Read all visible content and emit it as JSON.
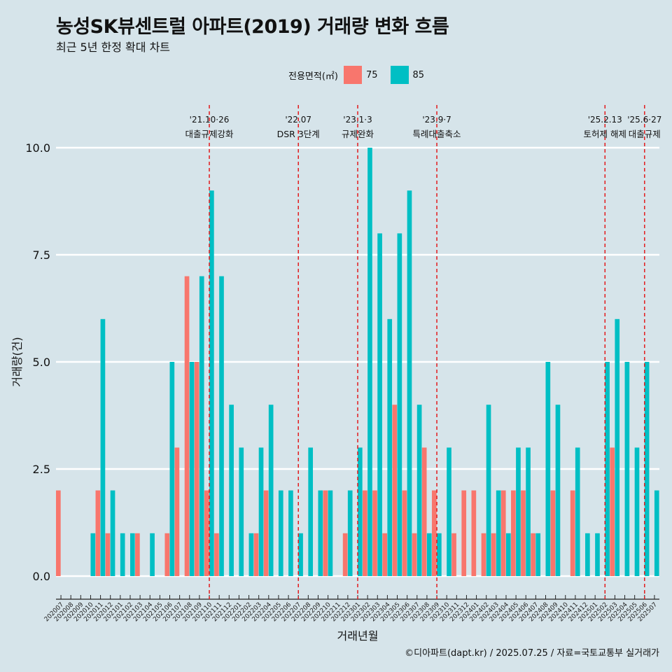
{
  "chart_data": {
    "type": "bar",
    "title": "농성SK뷰센트럴 아파트(2019) 거래량 변화 흐름",
    "subtitle": "최근 5년 한정 확대 차트",
    "xlabel": "거래년월",
    "ylabel": "거래량(건)",
    "ylim": [
      0,
      10
    ],
    "y_ticks": [
      "0.0",
      "2.5",
      "5.0",
      "7.5",
      "10.0"
    ],
    "legend": {
      "title": "전용면적(㎡)",
      "placement": "top-center",
      "entries": [
        {
          "label": "75",
          "color": "#f8766d"
        },
        {
          "label": "85",
          "color": "#00bfc4"
        }
      ]
    },
    "categories": [
      "202007",
      "202008",
      "202009",
      "202010",
      "202011",
      "202012",
      "202101",
      "202102",
      "202103",
      "202104",
      "202105",
      "202106",
      "202107",
      "202108",
      "202109",
      "202110",
      "202111",
      "202112",
      "202201",
      "202202",
      "202203",
      "202204",
      "202205",
      "202206",
      "202207",
      "202208",
      "202209",
      "202210",
      "202211",
      "202212",
      "202301",
      "202302",
      "202303",
      "202304",
      "202305",
      "202306",
      "202307",
      "202308",
      "202309",
      "202310",
      "202311",
      "202312",
      "202401",
      "202402",
      "202403",
      "202404",
      "202405",
      "202406",
      "202407",
      "202408",
      "202409",
      "202410",
      "202411",
      "202412",
      "202501",
      "202502",
      "202503",
      "202504",
      "202505",
      "202506",
      "202507"
    ],
    "series": [
      {
        "name": "75",
        "color": "#f8766d",
        "values": [
          2,
          0,
          0,
          0,
          2,
          1,
          0,
          0,
          1,
          0,
          0,
          1,
          3,
          7,
          5,
          2,
          1,
          0,
          0,
          0,
          1,
          2,
          0,
          0,
          0,
          0,
          0,
          2,
          0,
          1,
          0,
          2,
          2,
          1,
          4,
          2,
          1,
          3,
          2,
          0,
          1,
          2,
          2,
          1,
          1,
          2,
          2,
          2,
          1,
          0,
          2,
          0,
          2,
          0,
          0,
          0,
          3,
          0,
          0,
          0,
          0
        ]
      },
      {
        "name": "85",
        "color": "#00bfc4",
        "values": [
          0,
          0,
          0,
          1,
          6,
          2,
          1,
          1,
          0,
          1,
          0,
          5,
          0,
          5,
          7,
          9,
          7,
          4,
          3,
          1,
          3,
          4,
          2,
          2,
          1,
          3,
          2,
          2,
          0,
          2,
          3,
          10,
          8,
          6,
          8,
          9,
          4,
          1,
          1,
          3,
          0,
          0,
          0,
          4,
          2,
          1,
          3,
          3,
          1,
          5,
          4,
          0,
          3,
          1,
          1,
          5,
          6,
          5,
          3,
          5,
          2
        ]
      }
    ],
    "events": [
      {
        "index": 15,
        "date": "'21.10·26",
        "label": "대출규제강화"
      },
      {
        "index": 24,
        "date": "'22.07",
        "label": "DSR 3단계"
      },
      {
        "index": 30,
        "date": "'23.1·3",
        "label": "규제완화"
      },
      {
        "index": 38,
        "date": "'23.9·7",
        "label": "특례대출축소"
      },
      {
        "index": 55,
        "date": "'25.2.13",
        "label": "토허제 해제"
      },
      {
        "index": 59,
        "date": "'25.6·27",
        "label": "대출규제"
      }
    ],
    "caption": "©디아파트(dapt.kr) / 2025.07.25 / 자료=국토교통부 실거래가"
  }
}
